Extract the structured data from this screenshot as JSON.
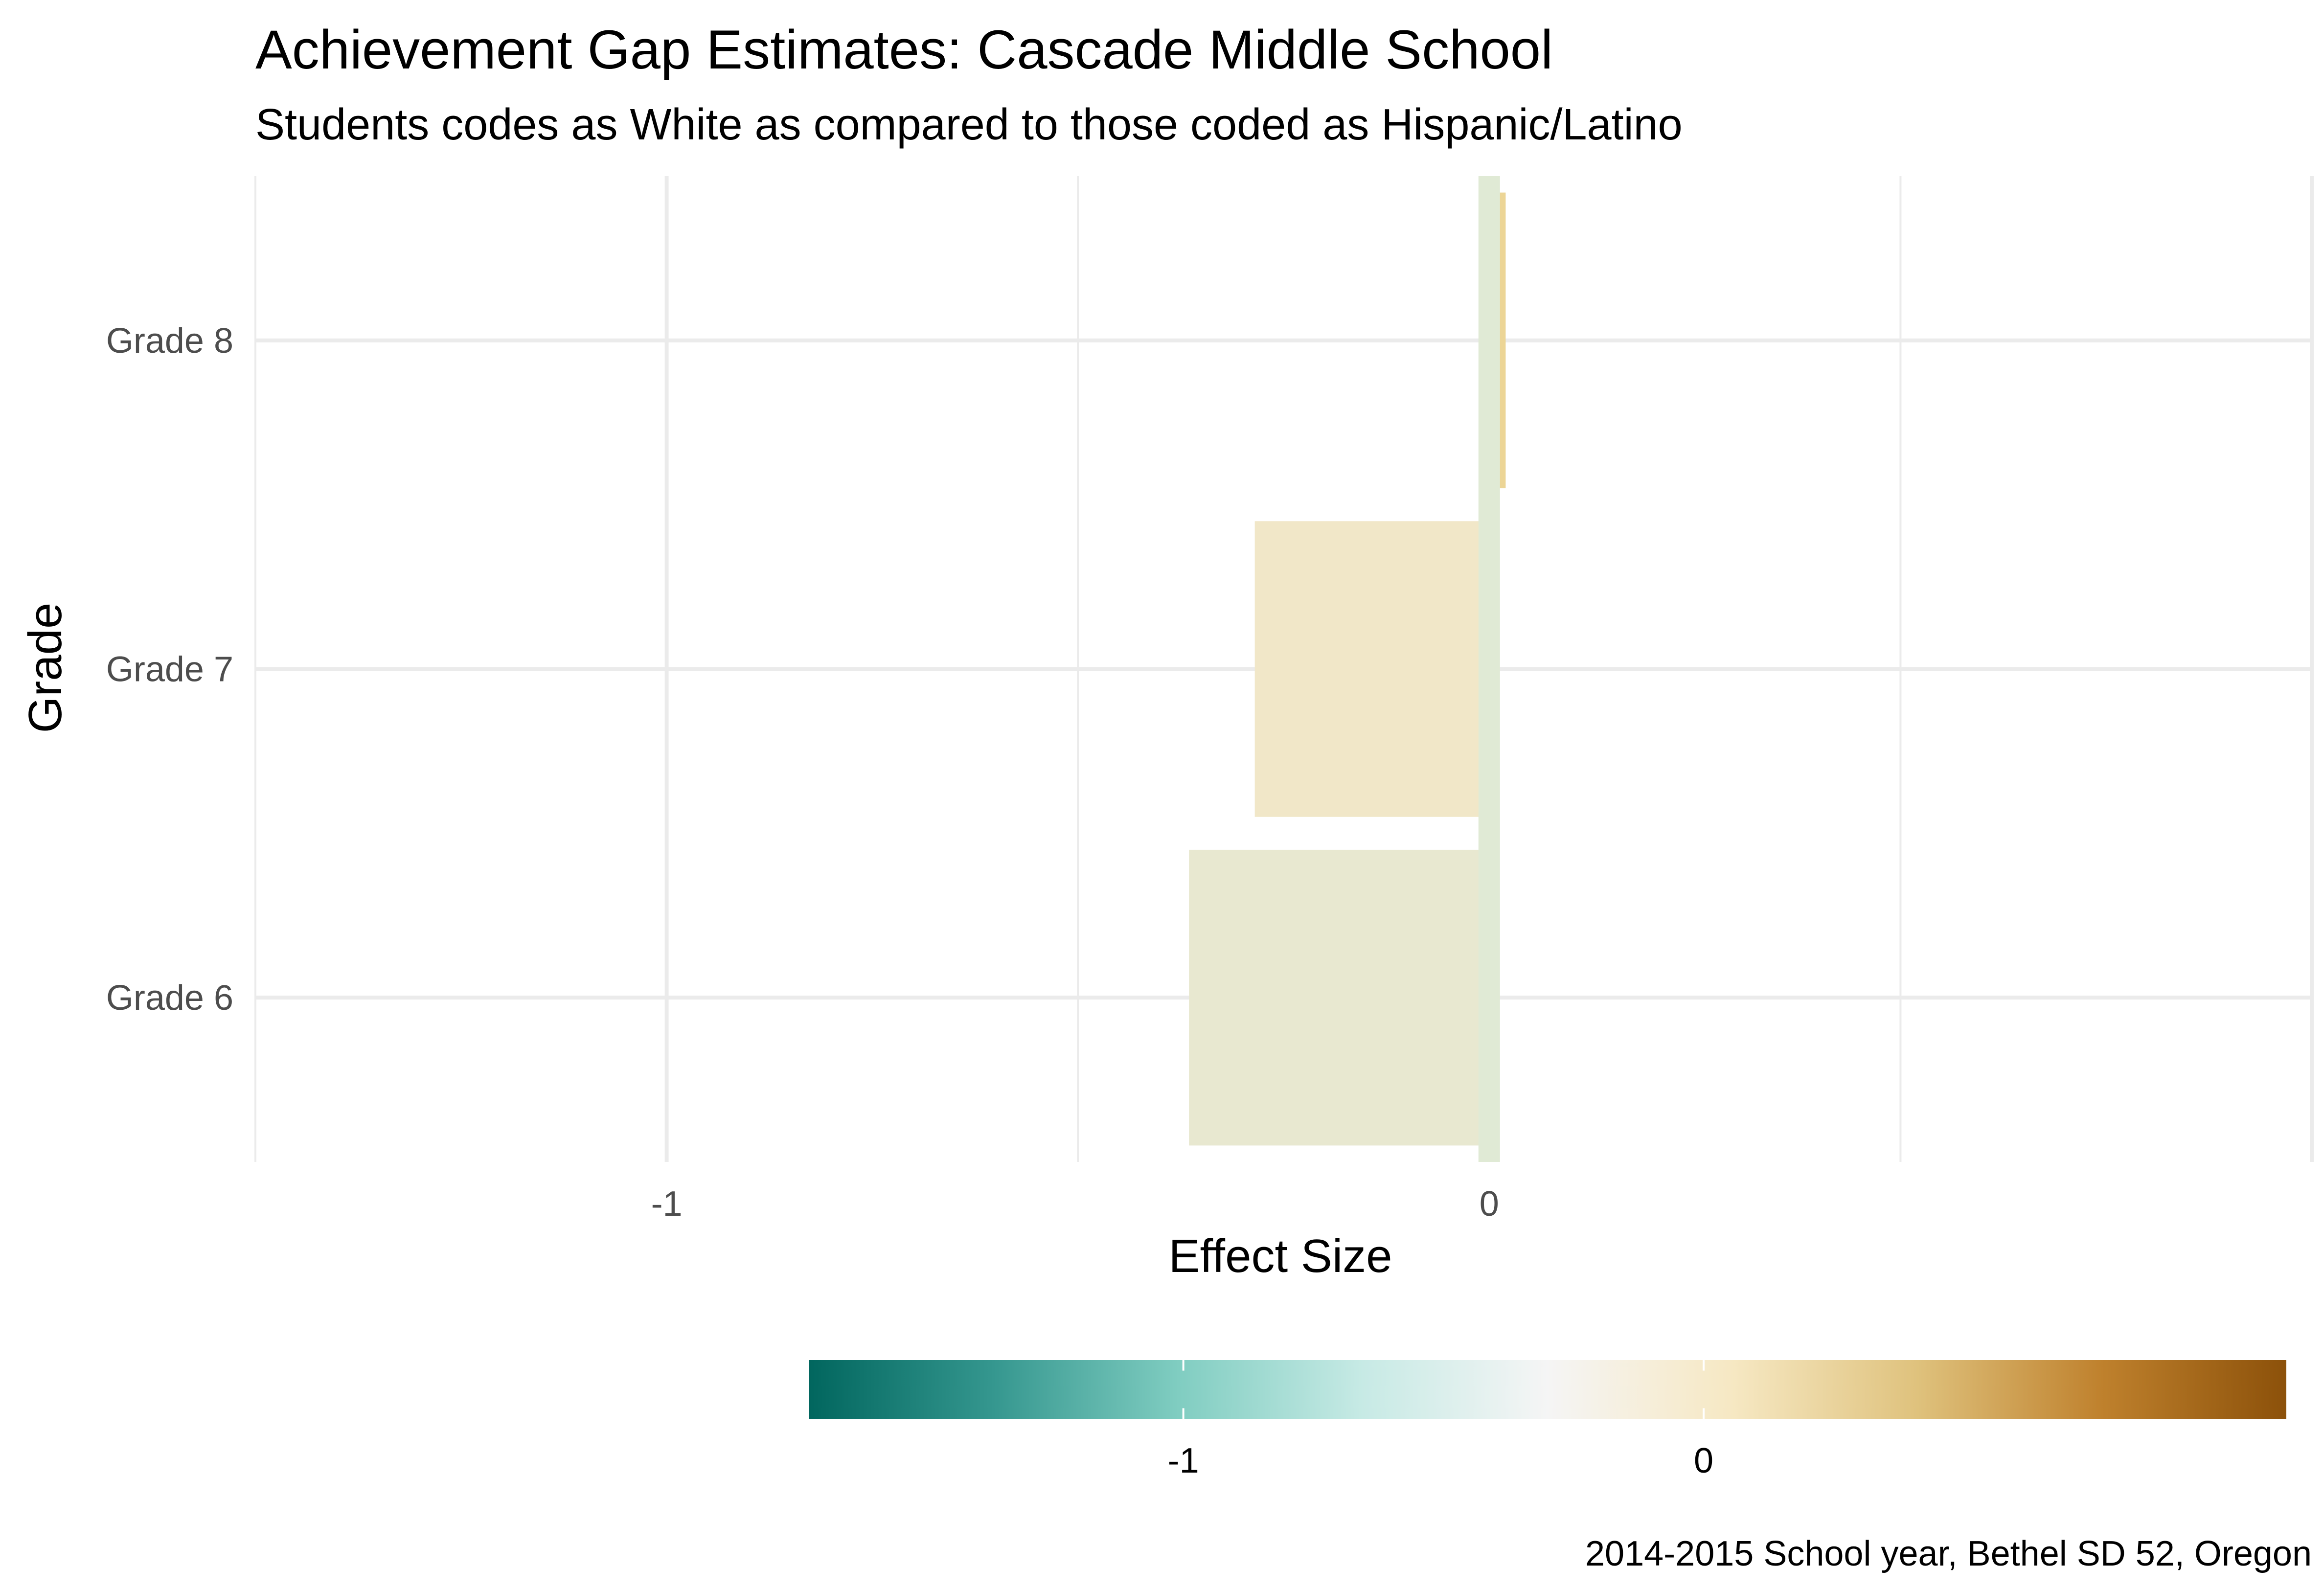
{
  "chart_data": {
    "type": "bar",
    "orientation": "horizontal",
    "title": "Achievement Gap Estimates: Cascade Middle School",
    "subtitle": "Students codes as White as compared to those coded as Hispanic/Latino",
    "xlabel": "Effect Size",
    "ylabel": "Grade",
    "caption": "2014-2015 School year, Bethel SD 52, Oregon",
    "categories": [
      "Grade 6",
      "Grade 7",
      "Grade 8"
    ],
    "values": [
      -0.365,
      -0.285,
      0.02
    ],
    "reference_line": {
      "value": 0,
      "color": "#e0ead5"
    },
    "bar_colors": [
      "#e8e8d0",
      "#f1e7c8",
      "#ecd596"
    ],
    "xlim": [
      -1.5,
      1
    ],
    "xticks": [
      {
        "value": -1,
        "label": "-1"
      },
      {
        "value": 0,
        "label": "0"
      }
    ],
    "grid": true,
    "legend": {
      "type": "colorbar",
      "position": "bottom",
      "range": [
        -1.72,
        1.12
      ],
      "ticks": [
        {
          "value": -1,
          "label": "-1"
        },
        {
          "value": 0,
          "label": "0"
        }
      ],
      "colors": [
        "#01665e",
        "#35978f",
        "#80cdc1",
        "#c7eae5",
        "#f5f5f5",
        "#f6e8c3",
        "#dfc27d",
        "#bf812d",
        "#8c510a"
      ]
    }
  }
}
